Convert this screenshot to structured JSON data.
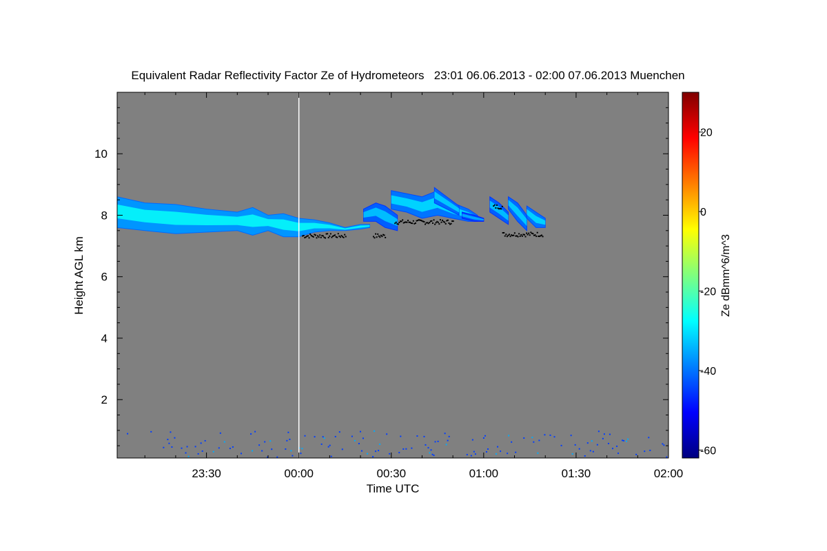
{
  "chart_data": {
    "type": "heatmap",
    "title": "Equivalent Radar Reflectivity Factor Ze of Hydrometeors   23:01 06.06.2013 - 02:00 07.06.2013 Muenchen",
    "xlabel": "Time UTC",
    "ylabel": "Height AGL km",
    "colorbar_label": "Ze dBmm^6/m^3",
    "x_ticks": [
      "23:30",
      "00:00",
      "00:30",
      "01:00",
      "01:30",
      "02:00"
    ],
    "x_tick_minutes": [
      30,
      60,
      90,
      120,
      150,
      180
    ],
    "xlim_minutes": [
      1,
      180
    ],
    "y_ticks": [
      "2",
      "4",
      "6",
      "8",
      "10"
    ],
    "y_tick_values": [
      2,
      4,
      6,
      8,
      10
    ],
    "ylim": [
      0.1,
      12
    ],
    "colorbar_ticks": [
      "20",
      "0",
      "-20",
      "-40",
      "-60"
    ],
    "colorbar_tick_values": [
      20,
      0,
      -20,
      -40,
      -60
    ],
    "zlim": [
      -62,
      30
    ],
    "colormap": [
      "#00007f",
      "#0000ff",
      "#007fff",
      "#00ffff",
      "#7fff7f",
      "#ffff00",
      "#ff7f00",
      "#ff0000",
      "#7f0000"
    ],
    "background_color": "#808080",
    "marker_line_minutes": 60,
    "marker_line_color": "#ffffff",
    "cloud_layers": [
      {
        "name": "main-layer",
        "t": [
          1,
          10,
          20,
          30,
          40,
          45,
          50,
          55,
          60,
          65,
          70,
          75,
          80,
          83
        ],
        "top": [
          8.6,
          8.4,
          8.35,
          8.2,
          8.1,
          8.25,
          8.0,
          8.05,
          7.9,
          7.85,
          7.75,
          7.6,
          7.7,
          7.7
        ],
        "bottom": [
          7.6,
          7.5,
          7.4,
          7.45,
          7.5,
          7.35,
          7.5,
          7.3,
          7.3,
          7.45,
          7.5,
          7.5,
          7.55,
          7.6
        ],
        "ze": -33
      },
      {
        "name": "patch-1",
        "t": [
          81,
          85,
          88,
          92
        ],
        "top": [
          8.2,
          8.4,
          8.3,
          8.0
        ],
        "bottom": [
          7.8,
          7.8,
          7.6,
          7.5
        ],
        "ze": -38
      },
      {
        "name": "patch-2",
        "t": [
          90,
          95,
          100,
          105,
          110,
          115,
          118
        ],
        "top": [
          8.8,
          8.7,
          8.6,
          8.8,
          8.4,
          8.2,
          8.0
        ],
        "bottom": [
          8.2,
          8.1,
          7.9,
          8.0,
          7.9,
          7.8,
          7.8
        ],
        "ze": -36
      },
      {
        "name": "patch-3",
        "t": [
          104,
          108,
          112
        ],
        "top": [
          8.9,
          8.6,
          8.3
        ],
        "bottom": [
          8.4,
          8.2,
          8.0
        ],
        "ze": -37
      },
      {
        "name": "patch-4",
        "t": [
          113,
          117,
          120
        ],
        "top": [
          8.1,
          8.0,
          7.9
        ],
        "bottom": [
          7.9,
          7.8,
          7.8
        ],
        "ze": -40
      },
      {
        "name": "patch-5",
        "t": [
          122,
          125,
          128
        ],
        "top": [
          8.6,
          8.4,
          8.1
        ],
        "bottom": [
          8.1,
          7.9,
          7.7
        ],
        "ze": -38
      },
      {
        "name": "patch-6",
        "t": [
          128,
          131,
          134
        ],
        "top": [
          8.6,
          8.4,
          8.0
        ],
        "bottom": [
          8.2,
          7.8,
          7.5
        ],
        "ze": -37
      },
      {
        "name": "patch-7",
        "t": [
          134,
          137,
          140
        ],
        "top": [
          8.3,
          8.1,
          7.9
        ],
        "bottom": [
          7.9,
          7.6,
          7.6
        ],
        "ze": -36
      }
    ],
    "black_dots": [
      {
        "t_start": 61,
        "t_end": 75,
        "h": 7.35
      },
      {
        "t_start": 84,
        "t_end": 88,
        "h": 7.35
      },
      {
        "t_start": 91,
        "t_end": 110,
        "h": 7.8
      },
      {
        "t_start": 123,
        "t_end": 126,
        "h": 8.3
      },
      {
        "t_start": 126,
        "t_end": 139,
        "h": 7.4
      }
    ],
    "near_ground_echo": {
      "t_start": 1,
      "t_end": 180,
      "h_min": 0.15,
      "h_max": 1.0,
      "ze": -45
    }
  }
}
